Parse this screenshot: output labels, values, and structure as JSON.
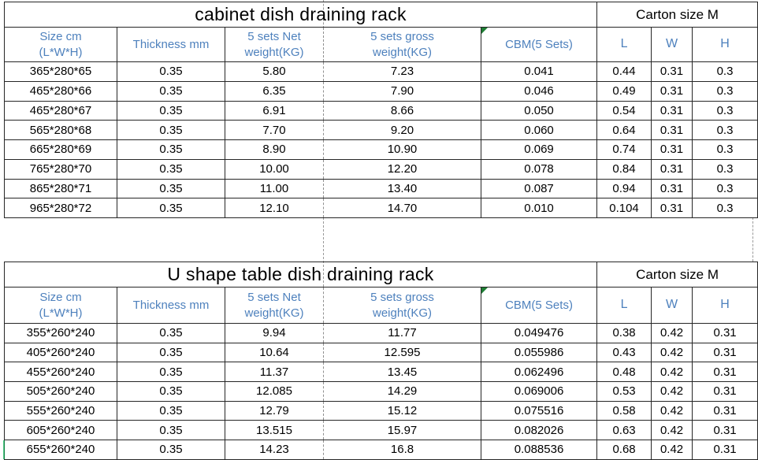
{
  "colors": {
    "header_text": "#4e81bd",
    "grid_border": "#262626",
    "page_break_dash": "#9a9a9a",
    "error_triangle_green": "#1e7e34",
    "title_text": "#000000"
  },
  "tables": [
    {
      "title": "cabinet dish draining rack",
      "carton_label": "Carton size M",
      "headers": [
        "Size cm\n(L*W*H)",
        "Thickness mm",
        "5 sets Net\nweight(KG)",
        "5 sets gross\nweight(KG)",
        "CBM(5 Sets)",
        "L",
        "W",
        "H"
      ],
      "rows": [
        [
          "365*280*65",
          "0.35",
          "5.80",
          "7.23",
          "0.041",
          "0.44",
          "0.31",
          "0.3"
        ],
        [
          "465*280*66",
          "0.35",
          "6.35",
          "7.90",
          "0.046",
          "0.49",
          "0.31",
          "0.3"
        ],
        [
          "465*280*67",
          "0.35",
          "6.91",
          "8.66",
          "0.050",
          "0.54",
          "0.31",
          "0.3"
        ],
        [
          "565*280*68",
          "0.35",
          "7.70",
          "9.20",
          "0.060",
          "0.64",
          "0.31",
          "0.3"
        ],
        [
          "665*280*69",
          "0.35",
          "8.90",
          "10.90",
          "0.069",
          "0.74",
          "0.31",
          "0.3"
        ],
        [
          "765*280*70",
          "0.35",
          "10.00",
          "12.20",
          "0.078",
          "0.84",
          "0.31",
          "0.3"
        ],
        [
          "865*280*71",
          "0.35",
          "11.00",
          "13.40",
          "0.087",
          "0.94",
          "0.31",
          "0.3"
        ],
        [
          "965*280*72",
          "0.35",
          "12.10",
          "14.70",
          "0.010",
          "0.104",
          "0.31",
          "0.3"
        ]
      ]
    },
    {
      "title": "U shape table dish draining rack",
      "carton_label": "Carton size M",
      "headers": [
        "Size cm\n(L*W*H)",
        "Thickness mm",
        "5 sets Net\nweight(KG)",
        "5 sets gross\nweight(KG)",
        "CBM(5 Sets)",
        "L",
        "W",
        "H"
      ],
      "rows": [
        [
          "355*260*240",
          "0.35",
          "9.94",
          "11.77",
          "0.049476",
          "0.38",
          "0.42",
          "0.31"
        ],
        [
          "405*260*240",
          "0.35",
          "10.64",
          "12.595",
          "0.055986",
          "0.43",
          "0.42",
          "0.31"
        ],
        [
          "455*260*240",
          "0.35",
          "11.37",
          "13.45",
          "0.062496",
          "0.48",
          "0.42",
          "0.31"
        ],
        [
          "505*260*240",
          "0.35",
          "12.085",
          "14.29",
          "0.069006",
          "0.53",
          "0.42",
          "0.31"
        ],
        [
          "555*260*240",
          "0.35",
          "12.79",
          "15.12",
          "0.075516",
          "0.58",
          "0.42",
          "0.31"
        ],
        [
          "605*260*240",
          "0.35",
          "13.515",
          "15.97",
          "0.082026",
          "0.63",
          "0.42",
          "0.31"
        ],
        [
          "655*260*240",
          "0.35",
          "14.23",
          "16.8",
          "0.088536",
          "0.68",
          "0.42",
          "0.31"
        ]
      ]
    }
  ]
}
